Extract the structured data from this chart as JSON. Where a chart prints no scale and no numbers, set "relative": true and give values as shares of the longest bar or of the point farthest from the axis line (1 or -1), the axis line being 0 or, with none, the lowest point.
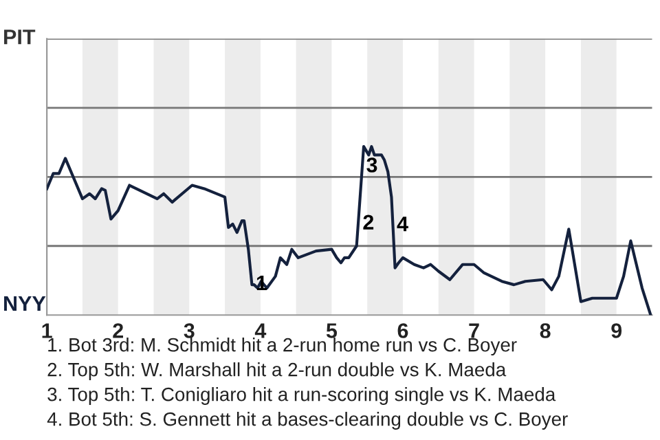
{
  "chart_data": {
    "type": "line",
    "relative": true,
    "x": [
      1.0,
      1.09,
      1.17,
      1.26,
      1.5,
      1.6,
      1.68,
      1.77,
      1.82,
      1.9,
      2.0,
      2.16,
      2.55,
      2.64,
      2.76,
      3.04,
      3.21,
      3.5,
      3.55,
      3.61,
      3.67,
      3.74,
      3.77,
      3.83,
      3.88,
      3.91,
      3.96,
      4.01,
      4.09,
      4.21,
      4.28,
      4.37,
      4.44,
      4.53,
      4.78,
      5.0,
      5.07,
      5.13,
      5.18,
      5.24,
      5.35,
      5.45,
      5.52,
      5.56,
      5.6,
      5.7,
      5.74,
      5.79,
      5.84,
      5.89,
      5.94,
      6.0,
      6.16,
      6.29,
      6.39,
      6.5,
      6.66,
      6.84,
      7.0,
      7.14,
      7.39,
      7.56,
      7.72,
      7.97,
      8.09,
      8.19,
      8.33,
      8.5,
      8.66,
      9.0,
      9.1,
      9.2,
      9.36,
      9.48
    ],
    "series": [
      {
        "color": "#14213d",
        "values": [
          0.75,
          0.84,
          0.84,
          0.93,
          0.69,
          0.72,
          0.69,
          0.75,
          0.74,
          0.57,
          0.62,
          0.77,
          0.69,
          0.72,
          0.67,
          0.77,
          0.75,
          0.7,
          0.52,
          0.54,
          0.49,
          0.56,
          0.56,
          0.39,
          0.18,
          0.18,
          0.16,
          0.2,
          0.16,
          0.23,
          0.34,
          0.3,
          0.39,
          0.34,
          0.38,
          0.39,
          0.34,
          0.31,
          0.34,
          0.34,
          0.41,
          1,
          0.95,
          1,
          0.95,
          0.95,
          0.92,
          0.85,
          0.7,
          0.28,
          0.31,
          0.34,
          0.3,
          0.28,
          0.3,
          0.26,
          0.21,
          0.3,
          0.3,
          0.25,
          0.2,
          0.18,
          0.2,
          0.21,
          0.15,
          0.23,
          0.51,
          0.08,
          0.1,
          0.1,
          0.23,
          0.44,
          0.16,
          0
        ]
      }
    ],
    "xlim": [
      1,
      9.5
    ],
    "xticks": [
      1,
      2,
      3,
      4,
      5,
      6,
      7,
      8,
      9
    ],
    "ref_lines": [
      {
        "axis": "y",
        "value": 0.41,
        "color": "#777777"
      },
      {
        "axis": "y",
        "value": 0.82,
        "color": "#777777"
      },
      {
        "axis": "y",
        "value": 1.23,
        "color": "#777777"
      },
      {
        "axis": "y",
        "value": 1.64,
        "color": "#777777"
      }
    ],
    "bands": [
      {
        "axis": "x",
        "from": 1.5,
        "to": 2,
        "color": "#ececec"
      },
      {
        "axis": "x",
        "from": 2.5,
        "to": 3,
        "color": "#ececec"
      },
      {
        "axis": "x",
        "from": 3.5,
        "to": 4,
        "color": "#ececec"
      },
      {
        "axis": "x",
        "from": 4.5,
        "to": 5,
        "color": "#ececec"
      },
      {
        "axis": "x",
        "from": 5.5,
        "to": 6,
        "color": "#ececec"
      },
      {
        "axis": "x",
        "from": 6.5,
        "to": 7,
        "color": "#ececec"
      },
      {
        "axis": "x",
        "from": 7.5,
        "to": 8,
        "color": "#ececec"
      },
      {
        "axis": "x",
        "from": 8.5,
        "to": 9,
        "color": "#ececec"
      }
    ],
    "annotations": [
      "PIT",
      "NYY",
      {
        "text": "1",
        "x": 3.88,
        "y": 0.18
      },
      {
        "text": "2",
        "x": 5.38,
        "y": 0.54
      },
      {
        "text": "3",
        "x": 5.43,
        "y": 0.88
      },
      {
        "text": "4",
        "x": 5.86,
        "y": 0.53
      },
      "1. Bot 3rd: M. Schmidt hit a 2-run home run vs C. Boyer",
      "2. Top 5th: W. Marshall hit a 2-run double vs K. Maeda",
      "3. Top 5th: T. Conigliaro hit a run-scoring single vs K. Maeda",
      "4. Bot 5th: S. Gennett hit a bases-clearing double vs C. Boyer"
    ]
  }
}
